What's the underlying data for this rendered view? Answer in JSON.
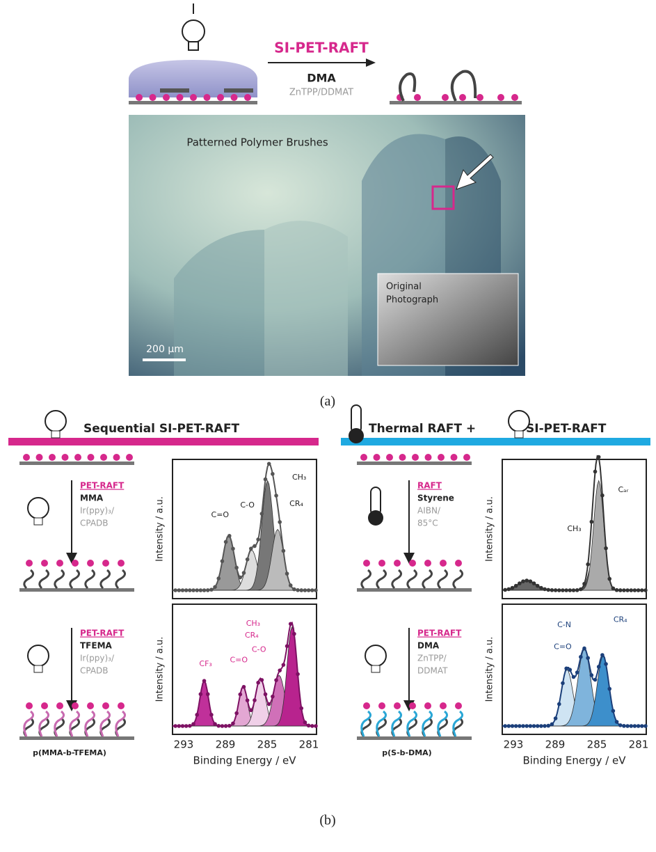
{
  "panel_a": {
    "method": "SI-PET-RAFT",
    "monomer": "DMA",
    "catalyst": "ZnTPP/DDMAT",
    "image_title": "Patterned Polymer Brushes",
    "inset_label": [
      "Original",
      "Photograph"
    ],
    "scale_bar": "200 µm",
    "caption": "(a)"
  },
  "panel_b": {
    "caption": "(b)",
    "y_label": "Intensity / a.u.",
    "x_label": "Binding Energy / eV",
    "x_ticks": [
      "293",
      "289",
      "285",
      "281"
    ],
    "left": {
      "header": "Sequential SI-PET-RAFT",
      "steps": [
        {
          "method": "PET-RAFT",
          "monomer": "MMA",
          "catalyst": [
            "Ir(ppy)₃/",
            "CPADB"
          ]
        },
        {
          "method": "PET-RAFT",
          "monomer": "TFEMA",
          "catalyst": [
            "Ir(ppy)₃/",
            "CPADB"
          ]
        }
      ],
      "product": "p(MMA-b-TFEMA)",
      "spectra": [
        {
          "peaks": [
            "C=O",
            "C-O",
            "CH₃",
            "CR₄"
          ]
        },
        {
          "peaks": [
            "CF₃",
            "C=O",
            "C-O",
            "CR₄",
            "CH₃"
          ]
        }
      ]
    },
    "right": {
      "header_prefix": "Thermal RAFT +",
      "header": "SI-PET-RAFT",
      "steps": [
        {
          "method": "RAFT",
          "monomer": "Styrene",
          "catalyst": [
            "AIBN/",
            "85°C"
          ]
        },
        {
          "method": "PET-RAFT",
          "monomer": "DMA",
          "catalyst": [
            "ZnTPP/",
            "DDMAT"
          ]
        }
      ],
      "product": "p(S-b-DMA)",
      "spectra": [
        {
          "peaks": [
            "CH₃",
            "Cₐᵣ"
          ]
        },
        {
          "peaks": [
            "C=O",
            "C-N",
            "CR₄"
          ]
        }
      ]
    }
  }
}
